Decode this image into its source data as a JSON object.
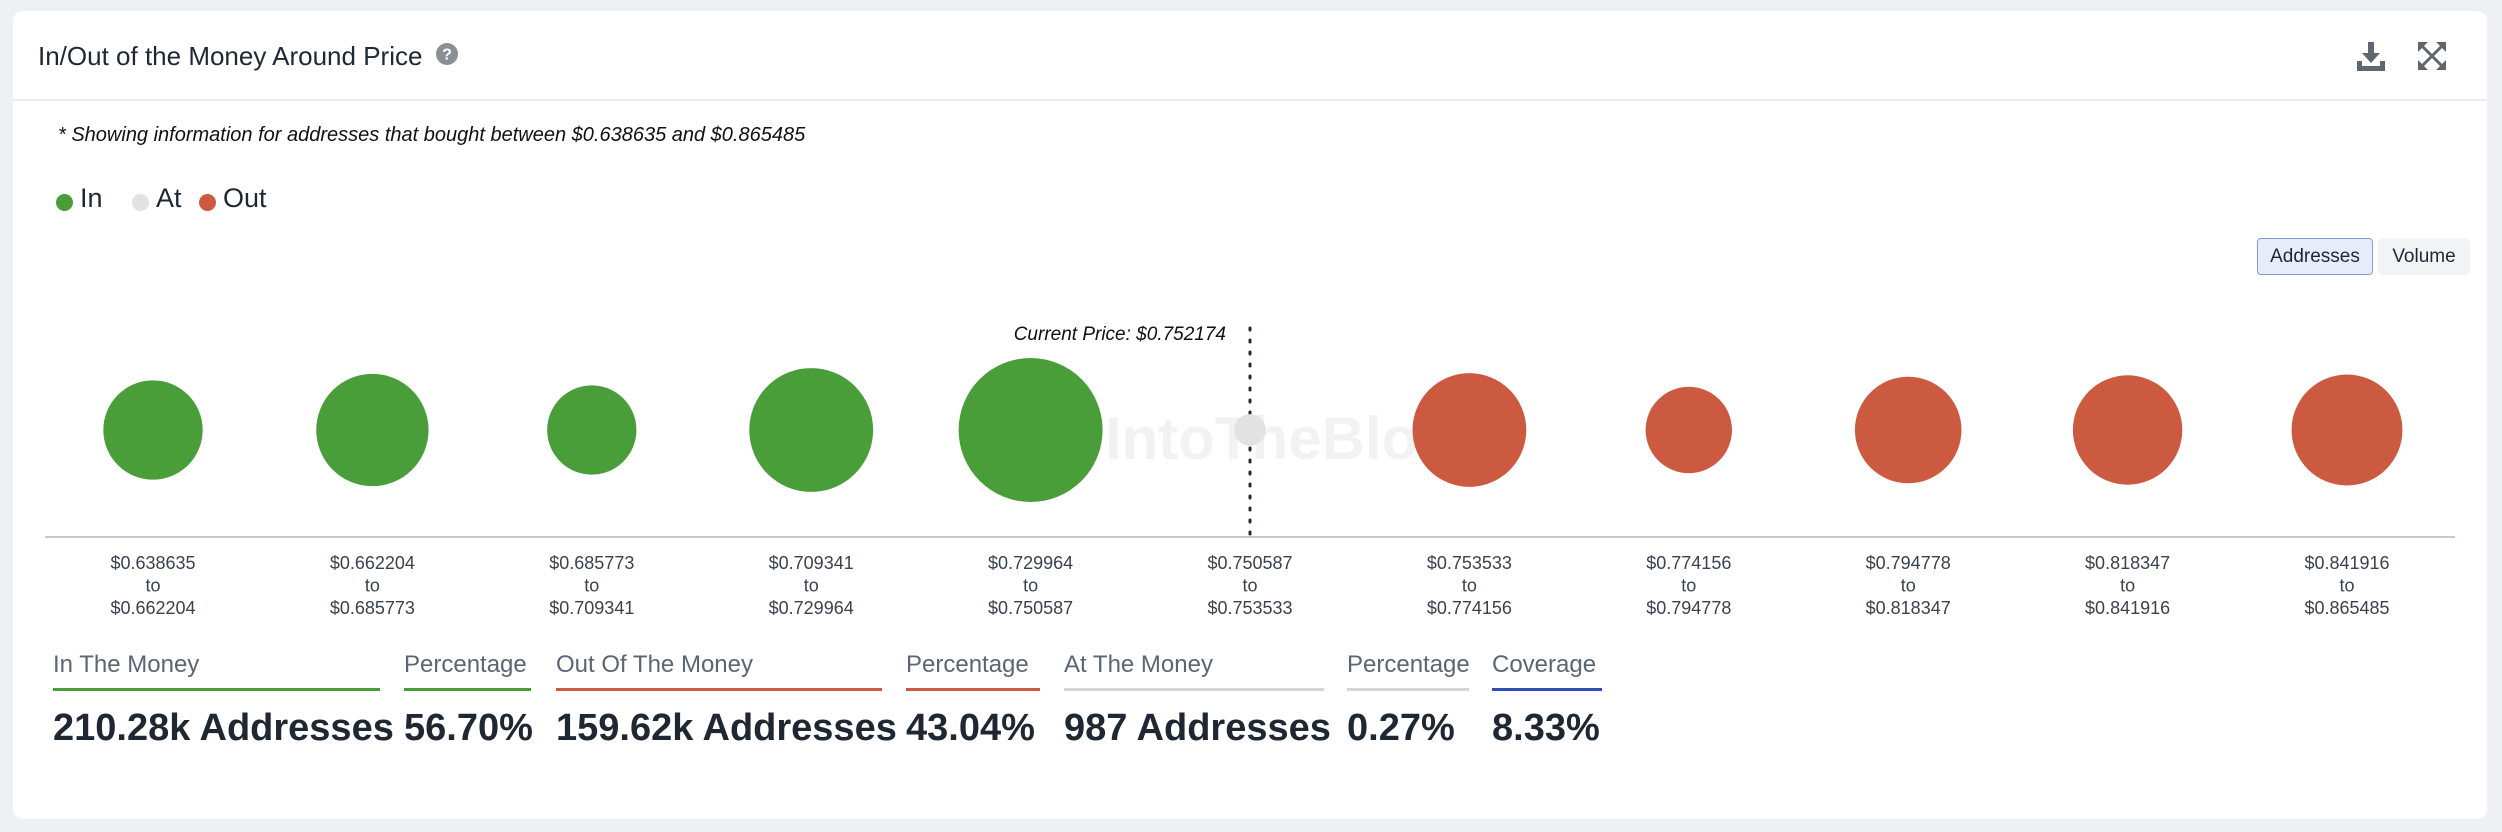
{
  "header": {
    "title": "In/Out of the Money Around Price",
    "help_icon": "question-circle-icon",
    "download_icon": "download-icon",
    "fullscreen_icon": "expand-icon"
  },
  "note": "* Showing information for addresses that bought between $0.638635 and $0.865485",
  "legend": [
    {
      "label": "In",
      "color": "#4a9e3a"
    },
    {
      "label": "At",
      "color": "#e2e2e2"
    },
    {
      "label": "Out",
      "color": "#cc5a41"
    }
  ],
  "toggles": {
    "addresses": "Addresses",
    "volume": "Volume",
    "selected": "Addresses"
  },
  "chart_data": {
    "type": "bubble",
    "metric": "Addresses",
    "current_price_label": "Current Price: $0.752174",
    "watermark": "IntoTheBlock",
    "connector_word": "to",
    "colors": {
      "in": "#4a9e3a",
      "at": "#e2e2e2",
      "out": "#cc5a41"
    },
    "buckets": [
      {
        "from": "$0.638635",
        "to": "$0.662204",
        "status": "in",
        "relative_size": 0.69
      },
      {
        "from": "$0.662204",
        "to": "$0.685773",
        "status": "in",
        "relative_size": 0.78
      },
      {
        "from": "$0.685773",
        "to": "$0.709341",
        "status": "in",
        "relative_size": 0.62
      },
      {
        "from": "$0.709341",
        "to": "$0.729964",
        "status": "in",
        "relative_size": 0.86
      },
      {
        "from": "$0.729964",
        "to": "$0.750587",
        "status": "in",
        "relative_size": 1.0
      },
      {
        "from": "$0.750587",
        "to": "$0.753533",
        "status": "at",
        "relative_size": 0.22
      },
      {
        "from": "$0.753533",
        "to": "$0.774156",
        "status": "out",
        "relative_size": 0.79
      },
      {
        "from": "$0.774156",
        "to": "$0.794778",
        "status": "out",
        "relative_size": 0.6
      },
      {
        "from": "$0.794778",
        "to": "$0.818347",
        "status": "out",
        "relative_size": 0.74
      },
      {
        "from": "$0.818347",
        "to": "$0.841916",
        "status": "out",
        "relative_size": 0.76
      },
      {
        "from": "$0.841916",
        "to": "$0.865485",
        "status": "out",
        "relative_size": 0.77
      }
    ]
  },
  "stats": [
    {
      "label": "In The Money",
      "value": "210.28k Addresses",
      "color": "#4a9e3a"
    },
    {
      "label": "Percentage",
      "value": "56.70%",
      "color": "#4a9e3a"
    },
    {
      "label": "Out Of The Money",
      "value": "159.62k Addresses",
      "color": "#cc5a41"
    },
    {
      "label": "Percentage",
      "value": "43.04%",
      "color": "#cc5a41"
    },
    {
      "label": "At The Money",
      "value": "987 Addresses",
      "color": "#d5d5d5"
    },
    {
      "label": "Percentage",
      "value": "0.27%",
      "color": "#d5d5d5"
    },
    {
      "label": "Coverage",
      "value": "8.33%",
      "color": "#2f4fb5"
    }
  ]
}
